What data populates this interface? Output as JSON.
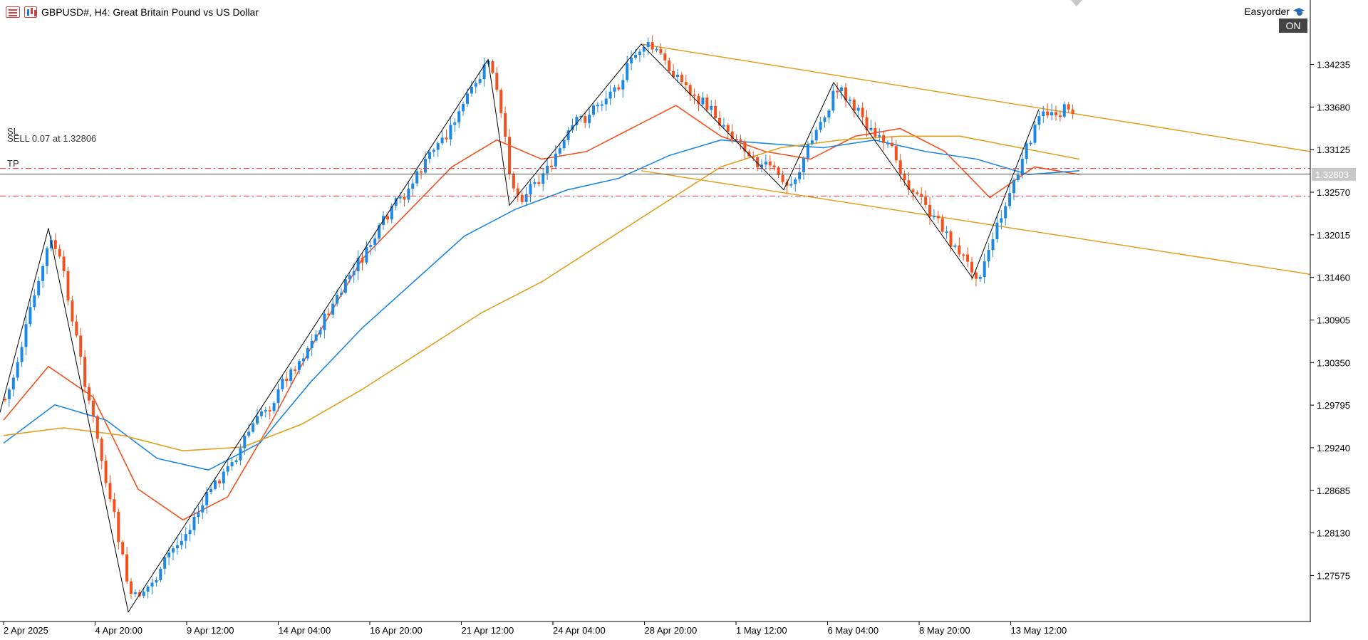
{
  "header": {
    "symbol": "GBPUSD#",
    "timeframe": "H4",
    "description": "Great Britain Pound vs US Dollar",
    "title_text": "GBPUSD#, H4:  Great Britain Pound vs US Dollar"
  },
  "expert": {
    "name": "Easyorder",
    "state_label": "ON"
  },
  "orders": {
    "sl_label": "SL",
    "sell_label": "SELL 0.07 at 1.32806",
    "tp_label": "TP",
    "sl_price": 1.3288,
    "entry_price": 1.32806,
    "tp_price": 1.3252
  },
  "price_axis": {
    "ticks": [
      "1.34235",
      "1.33680",
      "1.33125",
      "1.32570",
      "1.32015",
      "1.31460",
      "1.30905",
      "1.30350",
      "1.29795",
      "1.29240",
      "1.28685",
      "1.28130",
      "1.27575"
    ],
    "current_price": "1.32803"
  },
  "time_axis": {
    "ticks": [
      "2 Apr 2025",
      "4 Apr 20:00",
      "9 Apr 12:00",
      "14 Apr 04:00",
      "16 Apr 20:00",
      "21 Apr 12:00",
      "24 Apr 04:00",
      "28 Apr 20:00",
      "1 May 12:00",
      "6 May 04:00",
      "8 May 20:00",
      "13 May 12:00"
    ]
  },
  "colors": {
    "bull": "#1e88e5",
    "bear": "#f4511e",
    "ma_fast": "#f4511e",
    "ma_mid": "#1e88e5",
    "ma_slow": "#e0a020",
    "channel": "#e0a020",
    "zigzag": "#000000",
    "sl_tp_line": "#e53935",
    "price_line": "#555555"
  },
  "chart_data": {
    "type": "candlestick",
    "symbol": "GBPUSD#",
    "timeframe": "H4",
    "y_range": [
      1.2705,
      1.3475
    ],
    "x_range_labels": [
      "2 Apr 2025",
      "13 May 12:00"
    ],
    "grid": false,
    "zigzag": [
      1.297,
      1.321,
      1.271,
      1.343,
      1.324,
      1.345,
      1.326,
      1.34,
      1.3145,
      1.3365
    ],
    "channel": {
      "upper": {
        "from": 1.345,
        "to": 1.331
      },
      "lower": {
        "from": 1.3285,
        "to": 1.315
      }
    },
    "moving_averages": [
      {
        "color": "ma_fast",
        "points": [
          1.296,
          1.303,
          1.299,
          1.287,
          1.283,
          1.286,
          1.296,
          1.307,
          1.317,
          1.323,
          1.329,
          1.3325,
          1.33,
          1.331,
          1.334,
          1.337,
          1.333,
          1.331,
          1.33,
          1.333,
          1.334,
          1.331,
          1.325,
          1.329,
          1.328
        ]
      },
      {
        "color": "ma_mid",
        "points": [
          1.293,
          1.298,
          1.296,
          1.291,
          1.2895,
          1.293,
          1.301,
          1.308,
          1.314,
          1.32,
          1.3235,
          1.326,
          1.3275,
          1.3305,
          1.3325,
          1.332,
          1.3315,
          1.3325,
          1.331,
          1.33,
          1.328,
          1.3285
        ]
      },
      {
        "color": "ma_slow",
        "points": [
          1.294,
          1.295,
          1.294,
          1.292,
          1.2925,
          1.2955,
          1.3,
          1.305,
          1.31,
          1.314,
          1.319,
          1.324,
          1.329,
          1.3315,
          1.3325,
          1.333,
          1.333,
          1.3315,
          1.33
        ]
      }
    ]
  }
}
